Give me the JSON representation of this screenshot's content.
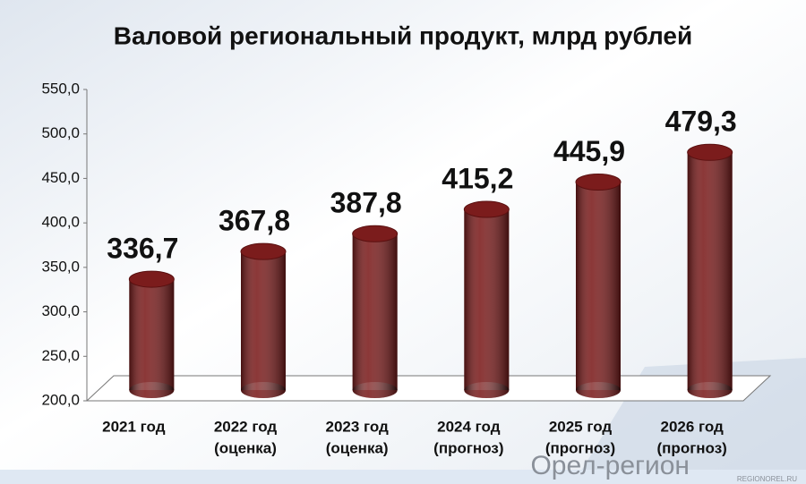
{
  "chart_data": {
    "type": "bar3d",
    "title": "Валовой региональный продукт, млрд рублей",
    "categories": [
      [
        "2021 год"
      ],
      [
        "2022 год",
        "(оценка)"
      ],
      [
        "2023 год",
        "(оценка)"
      ],
      [
        "2024 год",
        "(прогноз)"
      ],
      [
        "2025 год",
        "(прогноз)"
      ],
      [
        "2026 год",
        "(прогноз)"
      ]
    ],
    "values": [
      336.7,
      367.8,
      387.8,
      415.2,
      445.9,
      479.3
    ],
    "value_labels": [
      "336,7",
      "367,8",
      "387,8",
      "415,2",
      "445,9",
      "479,3"
    ],
    "color": "#7b1c1c",
    "ylim": [
      200,
      550
    ],
    "yticks": [
      {
        "value": 200,
        "label": "200,0"
      },
      {
        "value": 250,
        "label": "250,0"
      },
      {
        "value": 300,
        "label": "300,0"
      },
      {
        "value": 350,
        "label": "350,0"
      },
      {
        "value": 400,
        "label": "400,0"
      },
      {
        "value": 450,
        "label": "450,0"
      },
      {
        "value": 500,
        "label": "500,0"
      },
      {
        "value": 550,
        "label": "550,0"
      }
    ],
    "watermark": "Орел-регион",
    "watermark_sub": "REGIONOREL.RU"
  }
}
